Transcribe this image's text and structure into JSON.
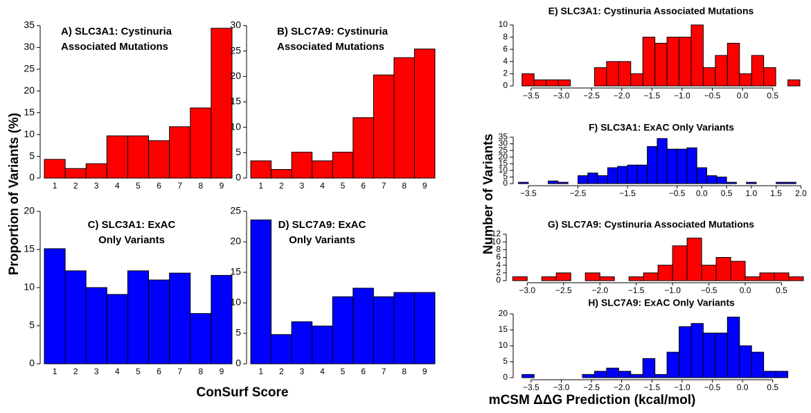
{
  "figure": {
    "left_ylabel": "Proportion of Variants (%)",
    "left_xlabel": "ConSurf Score",
    "right_ylabel": "Number of Variants",
    "right_xlabel": "mCSM ΔΔG Prediction (kcal/mol)"
  },
  "chart_data": [
    {
      "type": "bar",
      "title": [
        "A) SLC3A1: Cystinuria",
        "Associated Mutations"
      ],
      "categories": [
        "1",
        "2",
        "3",
        "4",
        "5",
        "6",
        "7",
        "8",
        "9"
      ],
      "values": [
        4.3,
        2.2,
        3.3,
        9.7,
        9.7,
        8.6,
        11.8,
        16.1,
        34.4
      ],
      "color": "#ff0000",
      "ylim": [
        0,
        35
      ],
      "yticks": [
        0,
        5,
        10,
        15,
        20,
        25,
        30,
        35
      ]
    },
    {
      "type": "bar",
      "title": [
        "B) SLC7A9: Cystinuria",
        "Associated Mutations"
      ],
      "categories": [
        "1",
        "2",
        "3",
        "4",
        "5",
        "6",
        "7",
        "8",
        "9"
      ],
      "values": [
        3.4,
        1.7,
        5.1,
        3.4,
        5.1,
        11.9,
        20.3,
        23.7,
        25.4
      ],
      "color": "#ff0000",
      "ylim": [
        0,
        30
      ],
      "yticks": [
        0,
        5,
        10,
        15,
        20,
        25,
        30
      ]
    },
    {
      "type": "bar",
      "title": [
        "C) SLC3A1: ExAC",
        "Only Variants"
      ],
      "categories": [
        "1",
        "2",
        "3",
        "4",
        "5",
        "6",
        "7",
        "8",
        "9"
      ],
      "values": [
        15.1,
        12.2,
        10.0,
        9.1,
        12.2,
        11.0,
        11.9,
        6.6,
        11.6
      ],
      "color": "#0000ff",
      "ylim": [
        0,
        20
      ],
      "yticks": [
        0,
        5,
        10,
        15,
        20
      ]
    },
    {
      "type": "bar",
      "title": [
        "D) SLC7A9: ExAC",
        "Only Variants"
      ],
      "categories": [
        "1",
        "2",
        "3",
        "4",
        "5",
        "6",
        "7",
        "8",
        "9"
      ],
      "values": [
        23.6,
        4.8,
        6.9,
        6.2,
        11.0,
        12.4,
        11.0,
        11.7,
        11.7
      ],
      "color": "#0000ff",
      "ylim": [
        0,
        25
      ],
      "yticks": [
        0,
        5,
        10,
        15,
        20,
        25
      ]
    },
    {
      "type": "histogram",
      "title": [
        "E) SLC3A1: Cystinuria Associated Mutations"
      ],
      "bins": [
        -3.65,
        -3.45,
        -3.25,
        -3.05,
        -2.85,
        -2.65,
        -2.45,
        -2.25,
        -2.05,
        -1.85,
        -1.65,
        -1.45,
        -1.25,
        -1.05,
        -0.85,
        -0.65,
        -0.45,
        -0.25,
        -0.05,
        0.15,
        0.35,
        0.55,
        0.75,
        0.95
      ],
      "values": [
        2,
        1,
        1,
        1,
        0,
        0,
        3,
        4,
        4,
        2,
        8,
        7,
        8,
        8,
        10,
        3,
        5,
        7,
        2,
        5,
        3,
        0,
        1
      ],
      "color": "#ff0000",
      "xlim": [
        -3.75,
        0.95
      ],
      "xticks": [
        {
          "value": -3.5,
          "label": "−3.5"
        },
        {
          "value": -3,
          "label": "−3.0"
        },
        {
          "value": -2.5,
          "label": "−2.5"
        },
        {
          "value": -2,
          "label": "−2.0"
        },
        {
          "value": -1.5,
          "label": "−1.5"
        },
        {
          "value": -1,
          "label": "−1.0"
        },
        {
          "value": -0.5,
          "label": "−0.5"
        },
        {
          "value": 0,
          "label": "0.0"
        },
        0.5
      ],
      "ylim": [
        0,
        10
      ],
      "yticks": [
        0,
        2,
        4,
        6,
        8,
        10
      ]
    },
    {
      "type": "histogram",
      "title": [
        "F) SLC3A1: ExAC Only Variants"
      ],
      "bins": [
        -3.7,
        -3.5,
        -3.3,
        -3.1,
        -2.9,
        -2.7,
        -2.5,
        -2.3,
        -2.1,
        -1.9,
        -1.7,
        -1.5,
        -1.3,
        -1.1,
        -0.9,
        -0.7,
        -0.5,
        -0.3,
        -0.1,
        0.1,
        0.3,
        0.5,
        0.7,
        0.9,
        1.1,
        1.3,
        1.5,
        1.7,
        1.9
      ],
      "values": [
        1,
        0,
        0,
        2,
        1,
        0,
        6,
        8,
        6,
        12,
        13,
        14,
        14,
        28,
        34,
        26,
        26,
        27,
        12,
        6,
        5,
        1,
        0,
        1,
        0,
        0,
        1,
        1
      ],
      "color": "#0000ff",
      "xlim": [
        -3.75,
        2.05
      ],
      "xticks": [
        {
          "value": -3.5,
          "label": "−3.5"
        },
        {
          "value": -2.5,
          "label": "−2.5"
        },
        {
          "value": -1.5,
          "label": "−1.5"
        },
        {
          "value": -0.5,
          "label": "−0.5"
        },
        {
          "value": 0,
          "label": "0.0"
        },
        0.5,
        {
          "value": 1,
          "label": "1.0"
        },
        1.5,
        {
          "value": 2,
          "label": "2.0"
        }
      ],
      "ylim": [
        0,
        35
      ],
      "yticks": [
        0,
        5,
        10,
        15,
        20,
        25,
        30,
        35
      ]
    },
    {
      "type": "histogram",
      "title": [
        "G) SLC7A9: Cystinuria Associated Mutations"
      ],
      "bins": [
        -3.2,
        -3.0,
        -2.8,
        -2.6,
        -2.4,
        -2.2,
        -2.0,
        -1.8,
        -1.6,
        -1.4,
        -1.2,
        -1.0,
        -0.8,
        -0.6,
        -0.4,
        -0.2,
        0.0,
        0.2,
        0.4,
        0.6,
        0.8
      ],
      "values": [
        1,
        0,
        1,
        2,
        0,
        2,
        1,
        0,
        1,
        2,
        4,
        9,
        11,
        4,
        6,
        5,
        1,
        2,
        2,
        1
      ],
      "color": "#ff0000",
      "xlim": [
        -3.25,
        0.8
      ],
      "xticks": [
        {
          "value": -3,
          "label": "−3.0"
        },
        {
          "value": -2.5,
          "label": "−2.5"
        },
        {
          "value": -2,
          "label": "−2.0"
        },
        {
          "value": -1.5,
          "label": "−1.5"
        },
        {
          "value": -1,
          "label": "−1.0"
        },
        {
          "value": -0.5,
          "label": "−0.5"
        },
        {
          "value": 0,
          "label": "0.0"
        },
        0.5
      ],
      "ylim": [
        0,
        12
      ],
      "yticks": [
        0,
        2,
        4,
        6,
        8,
        10,
        12
      ]
    },
    {
      "type": "histogram",
      "title": [
        "H) SLC7A9: ExAC Only Variants"
      ],
      "bins": [
        -3.65,
        -3.45,
        -3.25,
        -3.05,
        -2.85,
        -2.65,
        -2.45,
        -2.25,
        -2.05,
        -1.85,
        -1.65,
        -1.45,
        -1.25,
        -1.05,
        -0.85,
        -0.65,
        -0.45,
        -0.25,
        -0.05,
        0.15,
        0.35,
        0.55,
        0.75
      ],
      "values": [
        1,
        0,
        0,
        0,
        0,
        1,
        2,
        3,
        2,
        1,
        6,
        1,
        8,
        16,
        17,
        14,
        14,
        19,
        10,
        8,
        2,
        2
      ],
      "color": "#0000ff",
      "xlim": [
        -3.75,
        0.95
      ],
      "xticks": [
        {
          "value": -3.5,
          "label": "−3.5"
        },
        {
          "value": -3,
          "label": "−3.0"
        },
        {
          "value": -2.5,
          "label": "−2.5"
        },
        {
          "value": -2,
          "label": "−2.0"
        },
        {
          "value": -1.5,
          "label": "−1.5"
        },
        {
          "value": -1,
          "label": "−1.0"
        },
        {
          "value": -0.5,
          "label": "−0.5"
        },
        {
          "value": 0,
          "label": "0.0"
        },
        0.5
      ],
      "ylim": [
        0,
        20
      ],
      "yticks": [
        0,
        5,
        10,
        15,
        20
      ]
    }
  ]
}
